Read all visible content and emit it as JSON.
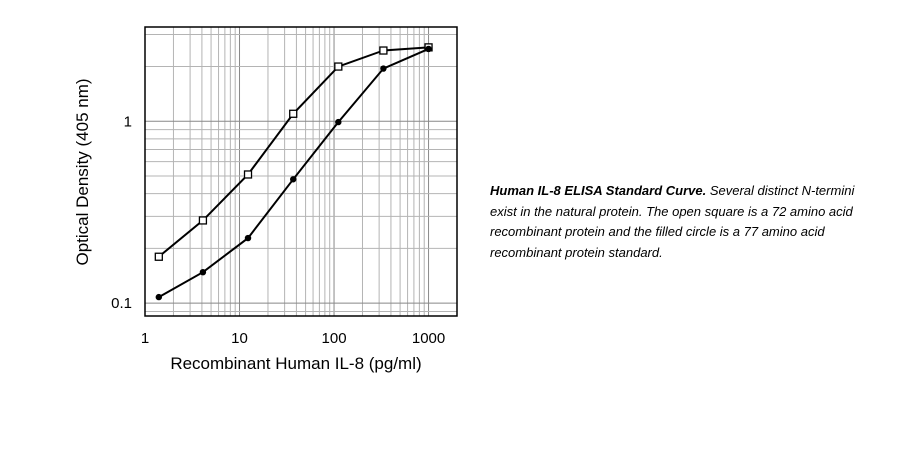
{
  "chart_data": {
    "type": "line",
    "xscale": "log",
    "yscale": "log",
    "xlim": [
      1,
      2000
    ],
    "ylim": [
      0.085,
      3.3
    ],
    "xlabel": "Recombinant Human IL-8 (pg/ml)",
    "ylabel": "Optical Density (405 nm)",
    "x_ticks": [
      {
        "value": 1,
        "label": "1"
      },
      {
        "value": 10,
        "label": "10"
      },
      {
        "value": 100,
        "label": "100"
      },
      {
        "value": 1000,
        "label": "1000"
      }
    ],
    "y_ticks": [
      {
        "value": 0.1,
        "label": "0.1"
      },
      {
        "value": 1,
        "label": "1"
      }
    ],
    "grid": true,
    "series": [
      {
        "marker": "open-square",
        "x": [
          1.4,
          4.1,
          12.3,
          37,
          111,
          333,
          1000
        ],
        "y": [
          0.18,
          0.285,
          0.51,
          1.1,
          2.0,
          2.45,
          2.55
        ]
      },
      {
        "marker": "filled-circle",
        "x": [
          1.4,
          4.1,
          12.3,
          37,
          111,
          333,
          1000
        ],
        "y": [
          0.108,
          0.148,
          0.228,
          0.48,
          0.99,
          1.95,
          2.5
        ]
      }
    ]
  },
  "caption": {
    "title": "Human IL-8 ELISA Standard Curve.",
    "text": " Several distinct N-termini exist in the natural protein. The open square is a 72 amino acid recombinant protein and the filled circle is a 77 amino acid recombinant protein standard."
  }
}
